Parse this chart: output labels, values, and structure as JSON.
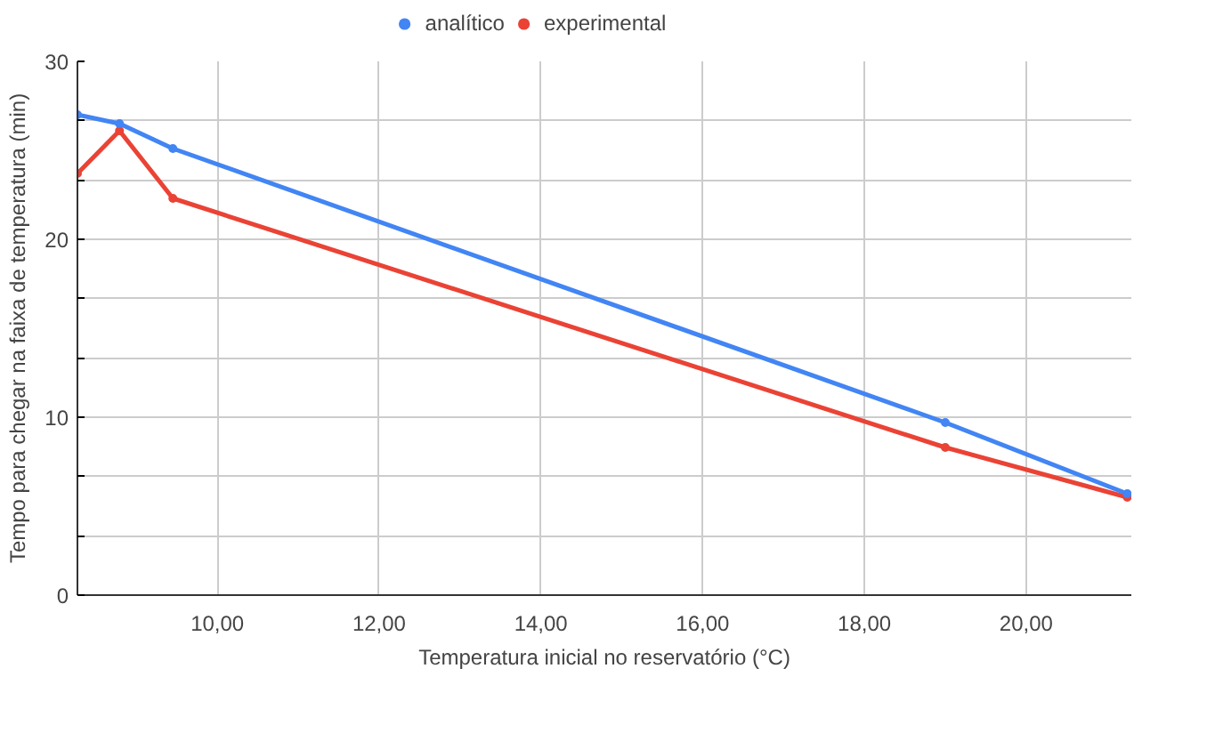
{
  "chart_data": {
    "type": "line",
    "xlabel": "Temperatura inicial no reservatório (°C)",
    "ylabel": "Tempo para chegar na faixa de temperatura (min)",
    "x": [
      8.27,
      8.79,
      9.45,
      19.0,
      21.25
    ],
    "series": [
      {
        "name": "analítico",
        "color": "#4285f4",
        "values": [
          27.0,
          26.5,
          25.1,
          9.7,
          5.7
        ]
      },
      {
        "name": "experimental",
        "color": "#ea4335",
        "values": [
          23.7,
          26.1,
          22.3,
          8.3,
          5.5
        ]
      }
    ],
    "xlim": [
      8.27,
      21.3
    ],
    "ylim": [
      0,
      30
    ],
    "xticks": [
      {
        "value": 10,
        "label": "10,00"
      },
      {
        "value": 12,
        "label": "12,00"
      },
      {
        "value": 14,
        "label": "14,00"
      },
      {
        "value": 16,
        "label": "16,00"
      },
      {
        "value": 18,
        "label": "18,00"
      },
      {
        "value": 20,
        "label": "20,00"
      }
    ],
    "yticks": [
      0,
      {
        "value": 3.333,
        "label": null
      },
      {
        "value": 6.667,
        "label": null
      },
      10,
      {
        "value": 13.333,
        "label": null
      },
      {
        "value": 16.667,
        "label": null
      },
      20,
      {
        "value": 23.333,
        "label": null
      },
      {
        "value": 26.667,
        "label": null
      },
      30
    ],
    "grid": true,
    "legend": "top",
    "marker": "circle",
    "line_style": "solid"
  }
}
